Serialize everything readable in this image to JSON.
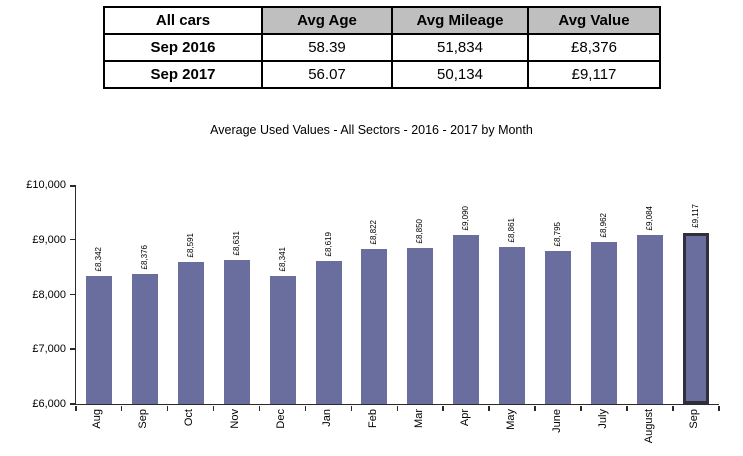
{
  "table": {
    "headers": [
      "All cars",
      "Avg Age",
      "Avg Mileage",
      "Avg Value"
    ],
    "rows": [
      [
        "Sep 2016",
        "58.39",
        "51,834",
        "£8,376"
      ],
      [
        "Sep 2017",
        "56.07",
        "50,134",
        "£9,117"
      ]
    ]
  },
  "chart_data": {
    "type": "bar",
    "title": "Average Used Values - All Sectors - 2016 - 2017 by Month",
    "categories": [
      "Aug",
      "Sep",
      "Oct",
      "Nov",
      "Dec",
      "Jan",
      "Feb",
      "Mar",
      "Apr",
      "May",
      "June",
      "July",
      "August",
      "Sep"
    ],
    "values": [
      8342,
      8376,
      8591,
      8631,
      8341,
      8619,
      8822,
      8850,
      9090,
      8861,
      8795,
      8962,
      9084,
      9117
    ],
    "value_labels": [
      "£8,342",
      "£8,376",
      "£8,591",
      "£8,631",
      "£8,341",
      "£8,619",
      "£8,822",
      "£8,850",
      "£9,090",
      "£8,861",
      "£8,795",
      "£8,962",
      "£9,084",
      "£9,117"
    ],
    "xlabel": "",
    "ylabel": "",
    "ylim": [
      6000,
      10000
    ],
    "ytick_values": [
      6000,
      7000,
      8000,
      9000,
      10000
    ],
    "ytick_labels": [
      "£6,000",
      "£7,000",
      "£8,000",
      "£9,000",
      "£10,000"
    ],
    "grid": false,
    "legend": false,
    "highlight_last_bar": true,
    "bar_color": "#6A6E9F",
    "highlight_border_color": "#30303a"
  },
  "colors": {
    "table_header_bg": "#BFBFBF",
    "axis": "#2b2b2b"
  }
}
